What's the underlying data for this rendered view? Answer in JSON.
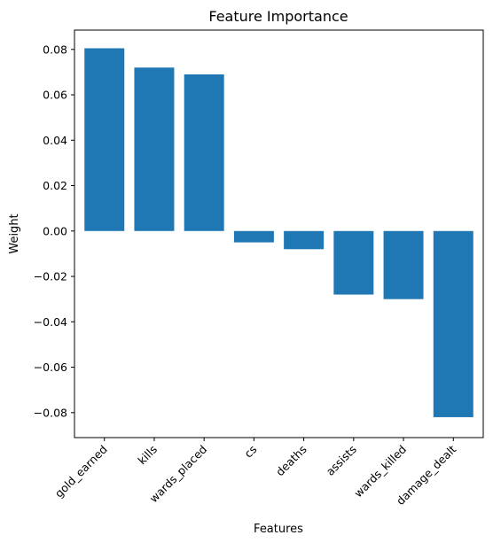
{
  "chart_data": {
    "type": "bar",
    "title": "Feature Importance",
    "xlabel": "Features",
    "ylabel": "Weight",
    "categories": [
      "gold_earned",
      "kills",
      "wards_placed",
      "cs",
      "deaths",
      "assists",
      "wards_killed",
      "damage_dealt"
    ],
    "values": [
      0.0805,
      0.072,
      0.069,
      -0.005,
      -0.008,
      -0.028,
      -0.03,
      -0.082
    ],
    "ylim": [
      -0.091,
      0.0885
    ],
    "yticks": [
      -0.08,
      -0.06,
      -0.04,
      -0.02,
      0.0,
      0.02,
      0.04,
      0.06,
      0.08
    ],
    "ytick_labels": [
      "−0.08",
      "−0.06",
      "−0.04",
      "−0.02",
      "0.00",
      "0.02",
      "0.04",
      "0.06",
      "0.08"
    ],
    "bar_color": "#1f77b4",
    "grid": false,
    "legend": "none"
  }
}
